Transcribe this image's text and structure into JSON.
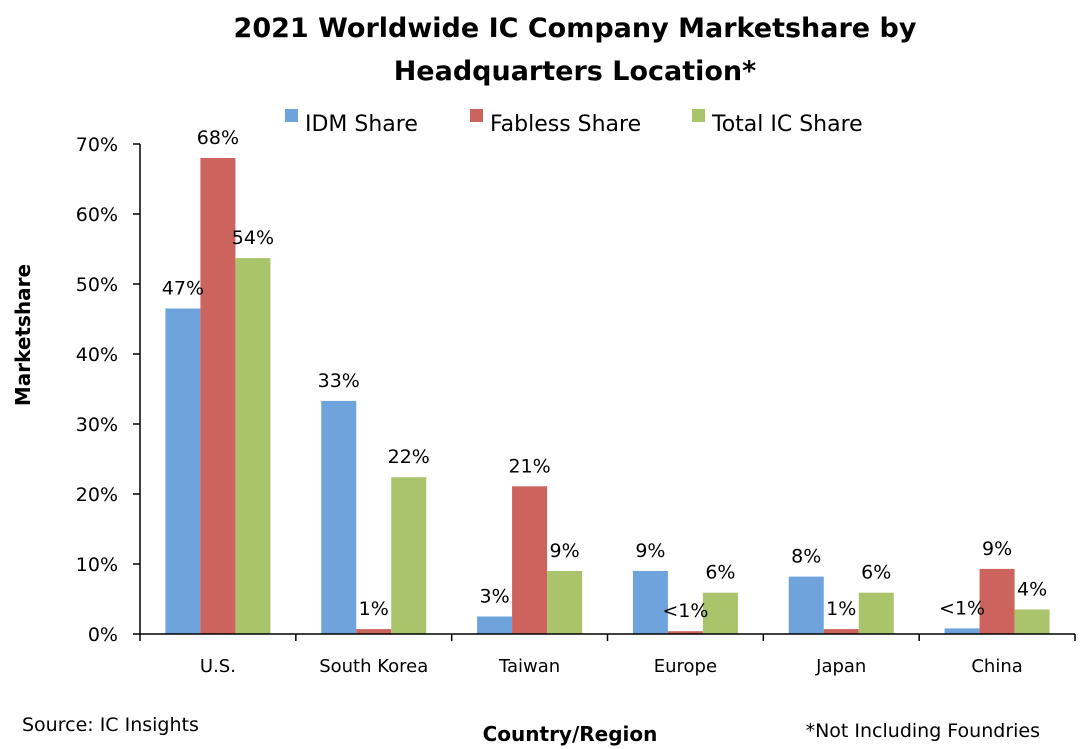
{
  "chart_data": {
    "type": "bar",
    "title_lines": [
      "2021 Worldwide IC Company Marketshare by",
      "Headquarters Location*"
    ],
    "xlabel": "Country/Region",
    "ylabel": "Marketshare",
    "ylim": [
      0,
      70
    ],
    "yticks": [
      0,
      10,
      20,
      30,
      40,
      50,
      60,
      70
    ],
    "ytick_labels": [
      "0%",
      "10%",
      "20%",
      "30%",
      "40%",
      "50%",
      "60%",
      "70%"
    ],
    "categories": [
      "U.S.",
      "South Korea",
      "Taiwan",
      "Europe",
      "Japan",
      "China"
    ],
    "series": [
      {
        "name": "IDM Share",
        "color": "#6fa3dc",
        "values": [
          46.5,
          33.3,
          2.5,
          9.0,
          8.2,
          0.8
        ],
        "labels": [
          "47%",
          "33%",
          "3%",
          "9%",
          "8%",
          "<1%"
        ]
      },
      {
        "name": "Fabless Share",
        "color": "#cd635d",
        "values": [
          68.0,
          0.7,
          21.1,
          0.4,
          0.7,
          9.3
        ],
        "labels": [
          "68%",
          "1%",
          "21%",
          "<1%",
          "1%",
          "9%"
        ]
      },
      {
        "name": "Total IC Share",
        "color": "#a9c46b",
        "values": [
          53.7,
          22.4,
          9.0,
          5.9,
          5.9,
          3.5
        ],
        "labels": [
          "54%",
          "22%",
          "9%",
          "6%",
          "6%",
          "4%"
        ]
      }
    ],
    "legend_position": "top",
    "grid": false,
    "source": "Source: IC Insights",
    "footnote": "*Not Including Foundries"
  }
}
